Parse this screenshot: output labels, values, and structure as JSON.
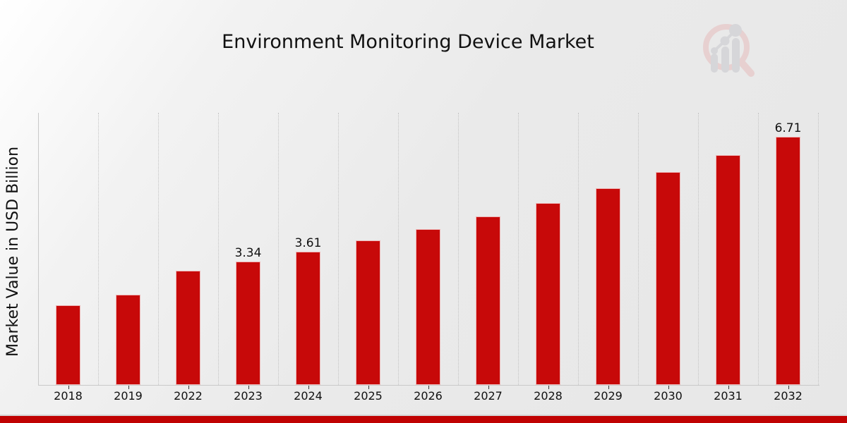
{
  "title": "Environment Monitoring Device Market",
  "ylabel": "Market Value in USD Billion",
  "chart_data": {
    "type": "bar",
    "title": "Environment Monitoring Device Market",
    "xlabel": "",
    "ylabel": "Market Value in USD Billion",
    "categories": [
      "2018",
      "2019",
      "2022",
      "2023",
      "2024",
      "2025",
      "2026",
      "2027",
      "2028",
      "2029",
      "2030",
      "2031",
      "2032"
    ],
    "values": [
      2.15,
      2.45,
      3.09,
      3.34,
      3.61,
      3.9,
      4.21,
      4.55,
      4.92,
      5.32,
      5.76,
      6.22,
      6.71
    ],
    "bar_labels": [
      "",
      "",
      "",
      "3.34",
      "3.61",
      "",
      "",
      "",
      "",
      "",
      "",
      "",
      "6.71"
    ],
    "ylim": [
      0,
      7.36
    ],
    "grid": "vertical-dotted",
    "legend": "none",
    "bar_color": "#c70909",
    "footer_bar_color": "#c00202",
    "axis_color": "#c9c9c9",
    "gridline_color": "#c3c3c3",
    "text_color": "#111111"
  },
  "logo": {
    "name": "magnifier-bar-chart-watermark",
    "ring_color": "#e7cccc",
    "glyph_color": "#d3d3d7"
  }
}
